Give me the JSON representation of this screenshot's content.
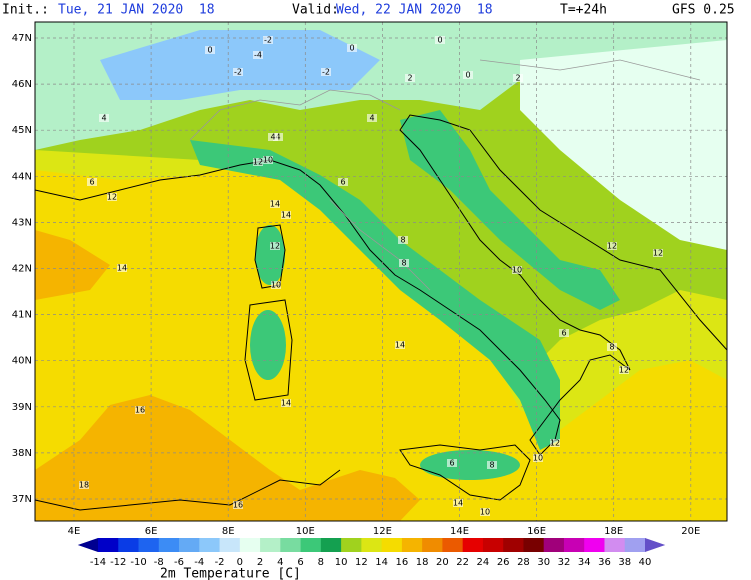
{
  "header": {
    "init_label": "Init.:",
    "init": "Tue, 21 JAN 2020  18",
    "valid_label": "Valid:",
    "valid": "Wed, 22 JAN 2020  18",
    "step": "T=+24h",
    "model": "GFS 0.25"
  },
  "map": {
    "lat_labels": [
      "47N",
      "46N",
      "45N",
      "44N",
      "43N",
      "42N",
      "41N",
      "40N",
      "39N",
      "38N",
      "37N"
    ],
    "lon_labels": [
      "4E",
      "6E",
      "8E",
      "10E",
      "12E",
      "14E",
      "16E",
      "18E",
      "20E"
    ],
    "isotherm_labels": [
      -2,
      -4,
      0,
      -2,
      -2,
      0,
      2,
      0,
      2,
      0,
      4,
      6,
      12,
      10,
      12,
      4,
      6,
      8,
      14,
      14,
      14,
      12,
      10,
      14,
      16,
      18,
      14,
      16,
      10,
      6,
      8,
      12,
      14,
      6,
      10,
      8,
      12,
      4,
      8,
      10,
      12,
      12,
      4
    ]
  },
  "legend": {
    "title": "2m Temperature [C]",
    "ticks": [
      -14,
      -12,
      -10,
      -8,
      -6,
      -4,
      -2,
      0,
      2,
      4,
      6,
      8,
      10,
      12,
      14,
      16,
      18,
      20,
      22,
      24,
      26,
      28,
      30,
      32,
      34,
      36,
      38,
      40
    ],
    "colors": [
      "#000090",
      "#0000c8",
      "#0a3ce6",
      "#1e64f0",
      "#3c8cf5",
      "#64aaf5",
      "#8cc8fa",
      "#c8e6fa",
      "#e6fff0",
      "#b4f0c8",
      "#78dca0",
      "#3cc878",
      "#14a050",
      "#a0d21e",
      "#dce614",
      "#f5dc00",
      "#f5b400",
      "#f08c00",
      "#eb5a00",
      "#e60000",
      "#c80000",
      "#a00000",
      "#780000",
      "#a0007a",
      "#c800b4",
      "#f000f0",
      "#d28cf0",
      "#a0a0f0",
      "#6450c8"
    ]
  }
}
